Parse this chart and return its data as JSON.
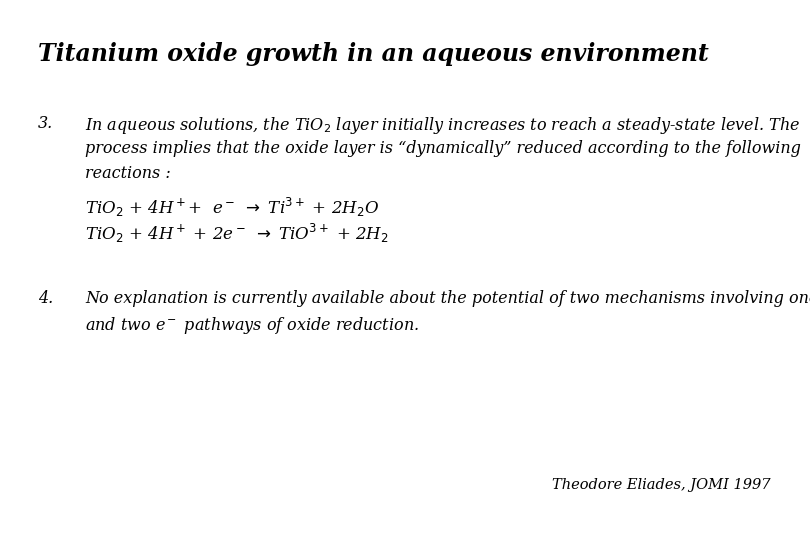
{
  "title": "Titanium oxide growth in an aqueous environment",
  "background_color": "#ffffff",
  "text_color": "#000000",
  "title_fontsize": 17,
  "body_fontsize": 11.5,
  "eq_fontsize": 12,
  "citation": "Theodore Eliades, JOMI 1997",
  "citation_fontsize": 10.5,
  "item3_number": "3.",
  "item4_number": "4.",
  "line1": "In aqueous solutions, the TiO$_2$ layer initially increases to reach a steady-state level. The",
  "line2": "process implies that the oxide layer is “dynamically” reduced according to the following",
  "line3": "reactions :",
  "eq1": "TiO$_2$ + 4H$^+$+  e$^-$ $\\rightarrow$ Ti$^{3+}$ + 2H$_2$O",
  "eq2": "TiO$_2$ + 4H$^+$ + 2e$^-$ $\\rightarrow$ TiO$^{3+}$ + 2H$_2$",
  "item4_line1": "No explanation is currently available about the potential of two mechanisms involving one",
  "item4_line2": "and two e$^-$ pathways of oxide reduction."
}
